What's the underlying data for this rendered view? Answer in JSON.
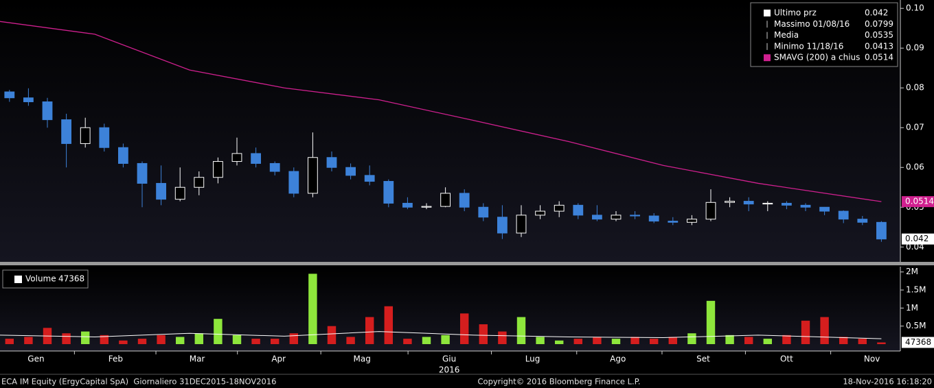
{
  "chart_data": [
    {
      "type": "candlestick",
      "x": [
        0.5,
        1.5,
        2.5,
        3.5,
        4.5,
        5.5,
        6.5,
        7.5,
        8.5,
        9.5,
        10.5,
        11.5,
        12.5,
        13.5,
        14.5,
        15.5,
        16.5,
        17.5,
        18.5,
        19.5,
        20.5,
        21.5,
        22.5,
        23.5,
        24.5,
        25.5,
        26.5,
        27.5,
        28.5,
        29.5,
        30.5,
        31.5,
        32.5,
        33.5,
        34.5,
        35.5,
        36.5,
        37.5,
        38.5,
        39.5,
        40.5,
        41.5,
        42.5,
        43.5,
        44.5,
        45.5,
        46.5
      ],
      "open": [
        0.079,
        0.0775,
        0.0765,
        0.072,
        0.066,
        0.07,
        0.065,
        0.061,
        0.056,
        0.052,
        0.055,
        0.0575,
        0.0615,
        0.0635,
        0.061,
        0.059,
        0.0535,
        0.0625,
        0.06,
        0.058,
        0.0565,
        0.051,
        0.05,
        0.0502,
        0.0535,
        0.05,
        0.0475,
        0.0435,
        0.048,
        0.049,
        0.0505,
        0.048,
        0.047,
        0.048,
        0.0478,
        0.0465,
        0.0462,
        0.047,
        0.0512,
        0.0515,
        0.0508,
        0.051,
        0.0505,
        0.05,
        0.049,
        0.047,
        0.0462
      ],
      "high": [
        0.0795,
        0.0799,
        0.0775,
        0.0735,
        0.0725,
        0.071,
        0.066,
        0.0615,
        0.0605,
        0.06,
        0.059,
        0.0625,
        0.0675,
        0.065,
        0.0615,
        0.06,
        0.0688,
        0.064,
        0.061,
        0.0605,
        0.057,
        0.0525,
        0.051,
        0.055,
        0.0545,
        0.051,
        0.0505,
        0.0505,
        0.0505,
        0.0515,
        0.051,
        0.0505,
        0.049,
        0.049,
        0.0485,
        0.0475,
        0.048,
        0.0545,
        0.0525,
        0.0525,
        0.0515,
        0.0515,
        0.051,
        0.05,
        0.0492,
        0.0478,
        0.0465
      ],
      "low": [
        0.0765,
        0.0755,
        0.07,
        0.06,
        0.065,
        0.064,
        0.06,
        0.05,
        0.0505,
        0.0515,
        0.053,
        0.056,
        0.0605,
        0.06,
        0.058,
        0.0525,
        0.0525,
        0.059,
        0.057,
        0.0555,
        0.05,
        0.0495,
        0.0495,
        0.05,
        0.049,
        0.0465,
        0.042,
        0.0425,
        0.047,
        0.0475,
        0.047,
        0.0465,
        0.0465,
        0.047,
        0.046,
        0.0455,
        0.0455,
        0.0465,
        0.05,
        0.049,
        0.049,
        0.0495,
        0.049,
        0.048,
        0.046,
        0.0455,
        0.0413
      ],
      "close": [
        0.0775,
        0.0765,
        0.072,
        0.066,
        0.07,
        0.065,
        0.061,
        0.056,
        0.052,
        0.055,
        0.0575,
        0.0615,
        0.0635,
        0.061,
        0.059,
        0.0535,
        0.0625,
        0.06,
        0.058,
        0.0565,
        0.051,
        0.05,
        0.0502,
        0.0535,
        0.05,
        0.0475,
        0.0435,
        0.048,
        0.049,
        0.0505,
        0.048,
        0.047,
        0.048,
        0.0478,
        0.0465,
        0.0462,
        0.047,
        0.0512,
        0.0515,
        0.0508,
        0.051,
        0.0505,
        0.05,
        0.049,
        0.047,
        0.0462,
        0.042
      ],
      "up_color": "#ffffff",
      "down_color": "#3d82d9",
      "sma": {
        "color": "#d0208f",
        "x": [
          0,
          5,
          10,
          15,
          20,
          25,
          30,
          35,
          40,
          46.5
        ],
        "values": [
          0.0967,
          0.0935,
          0.0845,
          0.08,
          0.077,
          0.0718,
          0.0665,
          0.0605,
          0.056,
          0.0514
        ]
      },
      "legend": [
        {
          "name": "Ultimo prz",
          "value": 0.042
        },
        {
          "name": "Massimo 01/08/16",
          "value": 0.0799
        },
        {
          "name": "Media",
          "value": 0.0535
        },
        {
          "name": "Minimo 11/18/16",
          "value": 0.0413
        },
        {
          "name": "SMAVG (200) a chius",
          "value": 0.0514
        }
      ],
      "xlim": [
        0,
        47.5
      ],
      "xticks": [
        {
          "value": 1.9,
          "label": "Gen"
        },
        {
          "value": 6.1,
          "label": "Feb"
        },
        {
          "value": 10.4,
          "label": "Mar"
        },
        {
          "value": 14.7,
          "label": "Apr"
        },
        {
          "value": 19.1,
          "label": "Mag"
        },
        {
          "value": 23.7,
          "label": "Giu"
        },
        {
          "value": 28.1,
          "label": "Lug"
        },
        {
          "value": 32.6,
          "label": "Ago"
        },
        {
          "value": 37.1,
          "label": "Set"
        },
        {
          "value": 41.5,
          "label": "Ott"
        },
        {
          "value": 46.0,
          "label": "Nov"
        }
      ],
      "year_label": "2016",
      "ylim": [
        0.0366,
        0.1021
      ],
      "yticks": [
        0.04,
        0.05,
        0.06,
        0.07,
        0.08,
        0.09,
        {
          "value": 0.1,
          "label": "0.10"
        }
      ]
    },
    {
      "type": "bar",
      "x": [
        0.5,
        1.5,
        2.5,
        3.5,
        4.5,
        5.5,
        6.5,
        7.5,
        8.5,
        9.5,
        10.5,
        11.5,
        12.5,
        13.5,
        14.5,
        15.5,
        16.5,
        17.5,
        18.5,
        19.5,
        20.5,
        21.5,
        22.5,
        23.5,
        24.5,
        25.5,
        26.5,
        27.5,
        28.5,
        29.5,
        30.5,
        31.5,
        32.5,
        33.5,
        34.5,
        35.5,
        36.5,
        37.5,
        38.5,
        39.5,
        40.5,
        41.5,
        42.5,
        43.5,
        44.5,
        45.5,
        46.5
      ],
      "values": [
        150000,
        200000,
        450000,
        300000,
        350000,
        250000,
        100000,
        150000,
        250000,
        200000,
        300000,
        700000,
        250000,
        150000,
        150000,
        300000,
        1950000,
        500000,
        200000,
        750000,
        1050000,
        150000,
        200000,
        250000,
        850000,
        550000,
        350000,
        750000,
        200000,
        100000,
        150000,
        200000,
        150000,
        200000,
        150000,
        200000,
        300000,
        1200000,
        250000,
        200000,
        150000,
        250000,
        650000,
        750000,
        200000,
        150000,
        47368
      ],
      "up_color": "#8ee63c",
      "down_color": "#d51e1e",
      "average": {
        "color": "#ffffff",
        "x": [
          0,
          5,
          10,
          15,
          20,
          25,
          30,
          35,
          40,
          46.5
        ],
        "values": [
          250000,
          200000,
          300000,
          220000,
          350000,
          250000,
          200000,
          180000,
          250000,
          150000
        ]
      },
      "legend": {
        "name": "Volume",
        "value": 47368
      },
      "ylim": [
        0,
        2090000
      ],
      "yticks": [
        {
          "value": 500000,
          "label": "0.5M"
        },
        {
          "value": 1000000,
          "label": "1M"
        },
        {
          "value": 1500000,
          "label": "1.5M"
        },
        {
          "value": 2000000,
          "label": "2M"
        }
      ]
    }
  ],
  "footer": {
    "left": "ECA IM Equity (ErgyCapital SpA)  Giornaliero 31DEC2015-18NOV2016",
    "center": "Copyright© 2016 Bloomberg Finance L.P.",
    "right": "18-Nov-2016 16:18:20"
  }
}
